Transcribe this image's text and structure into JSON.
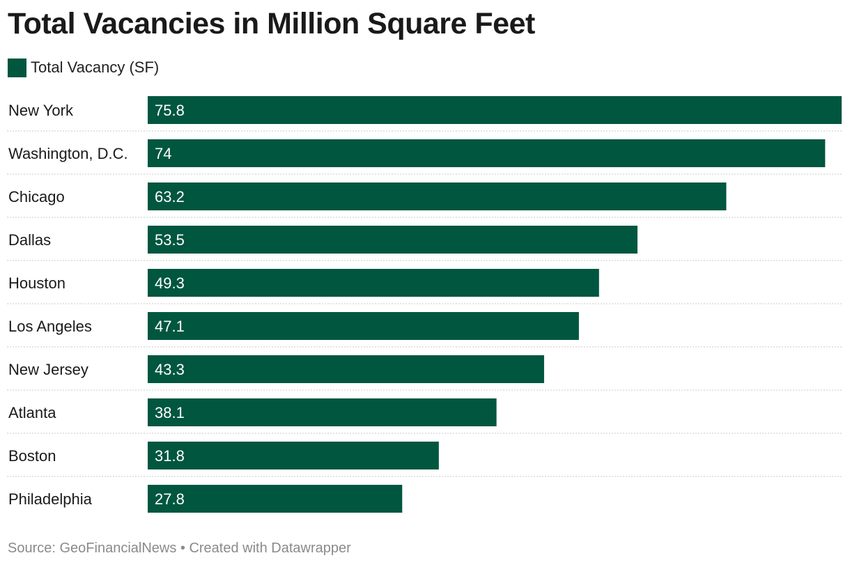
{
  "chart_data": {
    "type": "bar",
    "orientation": "horizontal",
    "title": "Total Vacancies in Million Square Feet",
    "legend": [
      {
        "label": "Total Vacancy (SF)",
        "color": "#00563f"
      }
    ],
    "categories": [
      "New York",
      "Washington, D.C.",
      "Chicago",
      "Dallas",
      "Houston",
      "Los Angeles",
      "New Jersey",
      "Atlanta",
      "Boston",
      "Philadelphia"
    ],
    "series": [
      {
        "name": "Total Vacancy (SF)",
        "values": [
          75.8,
          74,
          63.2,
          53.5,
          49.3,
          47.1,
          43.3,
          38.1,
          31.8,
          27.8
        ],
        "labels": [
          "75.8",
          "74",
          "63.2",
          "53.5",
          "49.3",
          "47.1",
          "43.3",
          "38.1",
          "31.8",
          "27.8"
        ]
      }
    ],
    "xlim": [
      0,
      75.8
    ],
    "grid": false,
    "source": "Source: GeoFinancialNews • Created with Datawrapper"
  }
}
